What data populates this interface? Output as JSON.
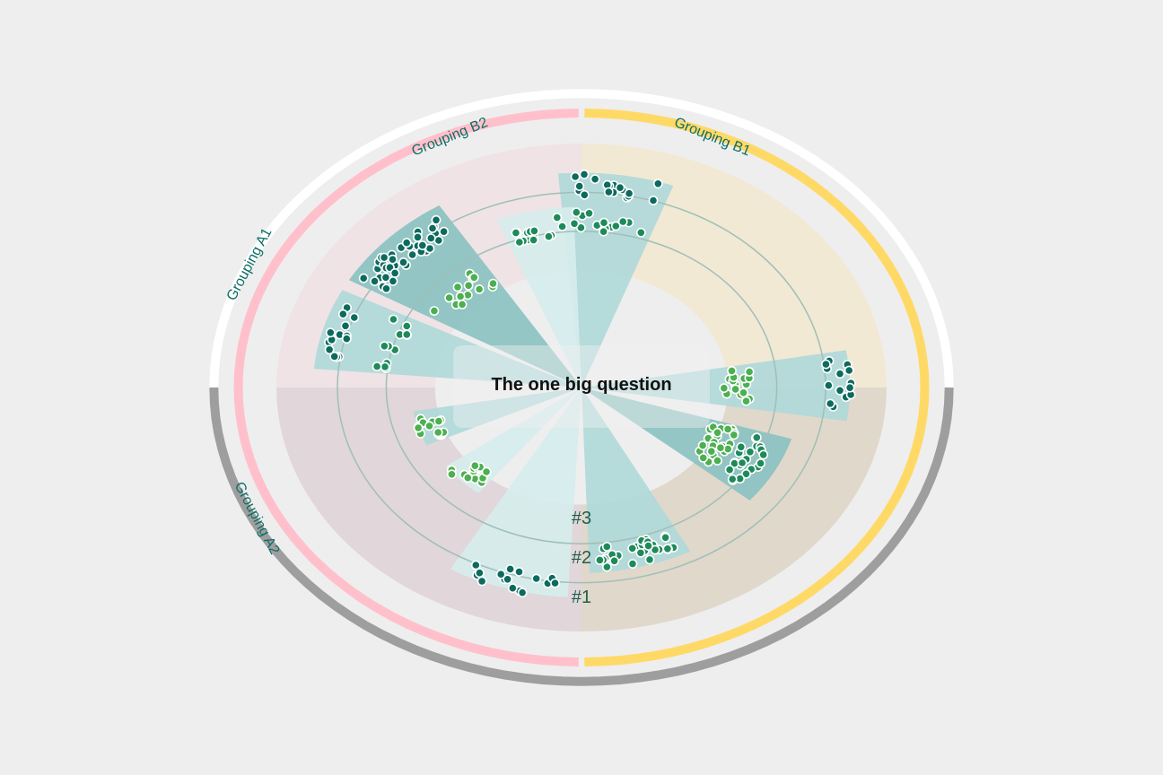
{
  "title": "The one big question",
  "colors": {
    "background": "#eeeeee",
    "groupA_fill": "#efe3e6",
    "groupA_fill_dark": "#e1d6d9",
    "groupB_fill": "#f1e9d3",
    "groupB_fill_dark": "#e0d8cb",
    "ring_pink": "#ffc0cb",
    "ring_yellow": "#ffd966",
    "ring_white": "#ffffff",
    "ring_gray": "#9e9e9e",
    "label": "#0d6e64",
    "gridline": "#9fbfb8",
    "wedge_light": "#d6ecec",
    "wedge_mid": "#b1d9d9",
    "wedge_dark": "#8dc3c2",
    "dot_dark": "#0c6a5e",
    "dot_mid": "#1e8a5a",
    "dot_light": "#4caf50"
  },
  "groupings": [
    {
      "label": "Grouping A1",
      "ring": "white",
      "side": "left-top"
    },
    {
      "label": "Grouping A2",
      "ring": "gray",
      "side": "left-bottom"
    },
    {
      "label": "Grouping B1",
      "ring": "yellow",
      "side": "right"
    },
    {
      "label": "Grouping B2",
      "ring": "pink",
      "side": "top-left"
    }
  ],
  "rank_labels": [
    "#3",
    "#2",
    "#1"
  ],
  "chart_data": {
    "type": "radial-scatter",
    "title": "The one big question",
    "rings": [
      "#1 (outer)",
      "#2 (middle)",
      "#3 (inner)"
    ],
    "legend": [
      "Grouping A1",
      "Grouping A2",
      "Grouping B1",
      "Grouping B2"
    ],
    "wedges": [
      {
        "angle_start": -95,
        "angle_end": -70,
        "r_outer": 0.88,
        "shade": "mid",
        "clusters": [
          {
            "r": 0.83,
            "n": 18,
            "color": "dark"
          },
          {
            "r": 0.68,
            "n": 14,
            "color": "mid"
          }
        ]
      },
      {
        "angle_start": -10,
        "angle_end": 9,
        "r_outer": 0.88,
        "shade": "mid",
        "clusters": [
          {
            "r": 0.51,
            "n": 16,
            "color": "light"
          },
          {
            "r": 0.85,
            "n": 14,
            "color": "dark"
          }
        ]
      },
      {
        "angle_start": 17,
        "angle_end": 40,
        "r_outer": 0.72,
        "shade": "dark",
        "clusters": [
          {
            "r": 0.5,
            "n": 26,
            "color": "light"
          },
          {
            "r": 0.62,
            "n": 22,
            "color": "mid"
          }
        ]
      },
      {
        "angle_start": 62,
        "angle_end": 88,
        "r_outer": 0.76,
        "shade": "mid",
        "clusters": [
          {
            "r": 0.7,
            "n": 30,
            "color": "mid"
          }
        ]
      },
      {
        "angle_start": 93,
        "angle_end": 120,
        "r_outer": 0.86,
        "shade": "light",
        "clusters": [
          {
            "r": 0.82,
            "n": 16,
            "color": "dark"
          }
        ]
      },
      {
        "angle_start": 128,
        "angle_end": 144,
        "r_outer": 0.55,
        "shade": "light",
        "clusters": [
          {
            "r": 0.51,
            "n": 14,
            "color": "light"
          }
        ]
      },
      {
        "angle_start": 155,
        "angle_end": 170,
        "r_outer": 0.56,
        "shade": "mid",
        "clusters": [
          {
            "r": 0.52,
            "n": 16,
            "color": "light"
          }
        ]
      },
      {
        "angle_start": 185,
        "angle_end": 207,
        "r_outer": 0.88,
        "shade": "mid",
        "clusters": [
          {
            "r": 0.82,
            "n": 14,
            "color": "dark"
          },
          {
            "r": 0.65,
            "n": 12,
            "color": "mid"
          }
        ]
      },
      {
        "angle_start": 210,
        "angle_end": 238,
        "r_outer": 0.88,
        "shade": "dark",
        "clusters": [
          {
            "r": 0.8,
            "n": 40,
            "color": "dark"
          },
          {
            "r": 0.55,
            "n": 14,
            "color": "light"
          }
        ]
      },
      {
        "angle_start": 248,
        "angle_end": 268,
        "r_outer": 0.74,
        "shade": "light",
        "clusters": [
          {
            "r": 0.66,
            "n": 14,
            "color": "mid"
          }
        ]
      }
    ]
  }
}
